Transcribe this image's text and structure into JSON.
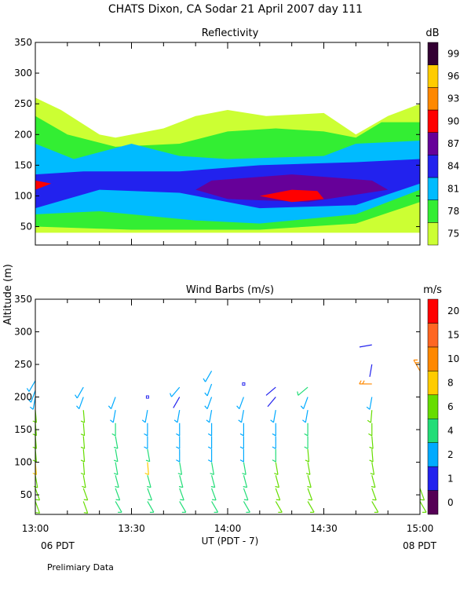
{
  "header": {
    "title": "CHATS Dixon, CA  Sodar  21 April 2007  day 111",
    "y_axis_label": "Altitude (m)",
    "x_axis_label": "UT  (PDT - 7)",
    "left_time_note": "06 PDT",
    "right_time_note": "08 PDT",
    "footer_note": "Prelimiary Data"
  },
  "colors": {
    "reflectivity_scale": [
      "#ccff33",
      "#33ee33",
      "#00bbff",
      "#2222ee",
      "#660099",
      "#ff0000",
      "#ff8800",
      "#ffcc00",
      "#330033"
    ],
    "wind_scale": [
      "#550055",
      "#2222ee",
      "#00aaff",
      "#22dd77",
      "#66dd00",
      "#ffcc00",
      "#ff8800",
      "#ff6622",
      "#ff0000"
    ]
  },
  "chart_data": [
    {
      "type": "heatmap",
      "title": "Reflectivity",
      "unit_label": "dB",
      "ylim": [
        20,
        350
      ],
      "xlim": [
        "13:00",
        "15:00"
      ],
      "y_ticks": [
        "50",
        "100",
        "150",
        "200",
        "250",
        "300",
        "350"
      ],
      "x_ticks": [],
      "colorbar": {
        "min": 72,
        "max": 102,
        "labels": [
          "75",
          "78",
          "81",
          "84",
          "87",
          "90",
          "93",
          "96",
          "99"
        ]
      },
      "grid": false,
      "regions": [
        {
          "level": 75,
          "color_index": 0,
          "points": [
            [
              "13:00",
              260
            ],
            [
              "13:08",
              240
            ],
            [
              "13:20",
              200
            ],
            [
              "13:25",
              195
            ],
            [
              "13:40",
              210
            ],
            [
              "13:50",
              230
            ],
            [
              "14:00",
              240
            ],
            [
              "14:12",
              230
            ],
            [
              "14:30",
              235
            ],
            [
              "14:40",
              200
            ],
            [
              "14:50",
              230
            ],
            [
              "15:00",
              250
            ],
            [
              "15:00",
              40
            ],
            [
              "13:00",
              40
            ]
          ]
        },
        {
          "level": 78,
          "color_index": 1,
          "points": [
            [
              "13:00",
              230
            ],
            [
              "13:10",
              200
            ],
            [
              "13:25",
              180
            ],
            [
              "13:45",
              185
            ],
            [
              "14:00",
              205
            ],
            [
              "14:15",
              210
            ],
            [
              "14:30",
              205
            ],
            [
              "14:40",
              195
            ],
            [
              "14:48",
              220
            ],
            [
              "15:00",
              220
            ],
            [
              "15:00",
              90
            ],
            [
              "14:40",
              55
            ],
            [
              "14:10",
              45
            ],
            [
              "13:30",
              45
            ],
            [
              "13:00",
              50
            ]
          ]
        },
        {
          "level": 81,
          "color_index": 2,
          "points": [
            [
              "13:00",
              185
            ],
            [
              "13:12",
              160
            ],
            [
              "13:30",
              185
            ],
            [
              "13:45",
              165
            ],
            [
              "14:00",
              160
            ],
            [
              "14:30",
              165
            ],
            [
              "14:40",
              185
            ],
            [
              "15:00",
              190
            ],
            [
              "15:00",
              110
            ],
            [
              "14:40",
              70
            ],
            [
              "14:10",
              55
            ],
            [
              "13:50",
              60
            ],
            [
              "13:20",
              75
            ],
            [
              "13:00",
              70
            ]
          ]
        },
        {
          "level": 84,
          "color_index": 3,
          "points": [
            [
              "13:00",
              135
            ],
            [
              "13:15",
              140
            ],
            [
              "13:45",
              140
            ],
            [
              "14:10",
              150
            ],
            [
              "14:40",
              155
            ],
            [
              "15:00",
              160
            ],
            [
              "15:00",
              120
            ],
            [
              "14:40",
              85
            ],
            [
              "14:10",
              80
            ],
            [
              "13:45",
              105
            ],
            [
              "13:20",
              110
            ],
            [
              "13:00",
              80
            ]
          ]
        },
        {
          "level": 87,
          "color_index": 4,
          "points": [
            [
              "13:55",
              125
            ],
            [
              "14:20",
              135
            ],
            [
              "14:45",
              125
            ],
            [
              "14:50",
              110
            ],
            [
              "14:25",
              90
            ],
            [
              "14:00",
              95
            ],
            [
              "13:50",
              110
            ]
          ]
        },
        {
          "level": 90,
          "color_index": 5,
          "points": [
            [
              "14:10",
              100
            ],
            [
              "14:20",
              110
            ],
            [
              "14:28",
              108
            ],
            [
              "14:30",
              95
            ],
            [
              "14:20",
              90
            ]
          ]
        },
        {
          "level": 90,
          "color_index": 5,
          "points": [
            [
              "13:00",
              125
            ],
            [
              "13:05",
              120
            ],
            [
              "13:00",
              110
            ]
          ]
        }
      ]
    },
    {
      "type": "scatter",
      "title": "Wind Barbs (m/s)",
      "unit_label": "m/s",
      "ylim": [
        20,
        350
      ],
      "xlim": [
        "13:00",
        "15:00"
      ],
      "y_ticks": [
        "50",
        "100",
        "150",
        "200",
        "250",
        "300",
        "350"
      ],
      "x_ticks": [
        "13:00",
        "13:30",
        "14:00",
        "14:30",
        "15:00"
      ],
      "colorbar": {
        "min": 0,
        "max": 20,
        "labels": [
          "0",
          "1",
          "2",
          "4",
          "6",
          "8",
          "10",
          "15",
          "20"
        ]
      },
      "grid": false,
      "profiles": [
        {
          "time": "13:00",
          "barbs": [
            [
              40,
              6,
              160
            ],
            [
              60,
              6,
              160
            ],
            [
              80,
              6,
              170
            ],
            [
              100,
              8,
              175
            ],
            [
              120,
              6,
              175
            ],
            [
              140,
              6,
              175
            ],
            [
              160,
              6,
              175
            ],
            [
              180,
              6,
              175
            ],
            [
              200,
              2,
              190
            ],
            [
              210,
              2,
              200
            ],
            [
              225,
              2,
              210
            ]
          ]
        },
        {
          "time": "13:15",
          "barbs": [
            [
              40,
              6,
              160
            ],
            [
              60,
              6,
              160
            ],
            [
              80,
              6,
              170
            ],
            [
              100,
              6,
              175
            ],
            [
              120,
              6,
              175
            ],
            [
              140,
              6,
              175
            ],
            [
              160,
              6,
              175
            ],
            [
              180,
              6,
              175
            ],
            [
              200,
              2,
              200
            ],
            [
              215,
              2,
              210
            ]
          ]
        },
        {
          "time": "13:25",
          "barbs": [
            [
              40,
              4,
              150
            ],
            [
              60,
              4,
              160
            ],
            [
              80,
              4,
              165
            ],
            [
              100,
              4,
              170
            ],
            [
              120,
              4,
              170
            ],
            [
              140,
              4,
              170
            ],
            [
              160,
              4,
              180
            ],
            [
              180,
              2,
              190
            ],
            [
              200,
              2,
              200
            ]
          ]
        },
        {
          "time": "13:35",
          "barbs": [
            [
              40,
              4,
              150
            ],
            [
              60,
              4,
              160
            ],
            [
              80,
              4,
              165
            ],
            [
              100,
              8,
              175
            ],
            [
              120,
              4,
              170
            ],
            [
              140,
              2,
              180
            ],
            [
              160,
              2,
              180
            ],
            [
              180,
              2,
              190
            ],
            [
              200,
              1,
              0
            ]
          ]
        },
        {
          "time": "13:45",
          "barbs": [
            [
              40,
              4,
              150
            ],
            [
              60,
              4,
              160
            ],
            [
              80,
              4,
              165
            ],
            [
              100,
              4,
              170
            ],
            [
              120,
              2,
              180
            ],
            [
              140,
              2,
              180
            ],
            [
              160,
              2,
              180
            ],
            [
              180,
              2,
              190
            ],
            [
              200,
              1,
              210
            ],
            [
              215,
              2,
              220
            ]
          ]
        },
        {
          "time": "13:55",
          "barbs": [
            [
              40,
              4,
              150
            ],
            [
              60,
              4,
              160
            ],
            [
              80,
              4,
              165
            ],
            [
              100,
              4,
              170
            ],
            [
              120,
              2,
              180
            ],
            [
              140,
              2,
              180
            ],
            [
              160,
              2,
              180
            ],
            [
              180,
              2,
              190
            ],
            [
              200,
              2,
              200
            ],
            [
              220,
              2,
              200
            ],
            [
              240,
              2,
              210
            ]
          ]
        },
        {
          "time": "14:05",
          "barbs": [
            [
              40,
              4,
              150
            ],
            [
              60,
              4,
              160
            ],
            [
              80,
              4,
              165
            ],
            [
              100,
              4,
              170
            ],
            [
              120,
              2,
              180
            ],
            [
              140,
              2,
              180
            ],
            [
              160,
              2,
              180
            ],
            [
              180,
              2,
              190
            ],
            [
              200,
              2,
              200
            ],
            [
              220,
              1,
              0
            ]
          ]
        },
        {
          "time": "14:15",
          "barbs": [
            [
              40,
              6,
              150
            ],
            [
              60,
              6,
              160
            ],
            [
              80,
              6,
              165
            ],
            [
              100,
              6,
              170
            ],
            [
              120,
              4,
              180
            ],
            [
              140,
              2,
              180
            ],
            [
              160,
              2,
              180
            ],
            [
              180,
              2,
              190
            ],
            [
              200,
              1,
              220
            ],
            [
              215,
              1,
              230
            ]
          ]
        },
        {
          "time": "14:25",
          "barbs": [
            [
              40,
              6,
              150
            ],
            [
              60,
              6,
              160
            ],
            [
              80,
              6,
              165
            ],
            [
              100,
              6,
              170
            ],
            [
              120,
              6,
              175
            ],
            [
              140,
              4,
              180
            ],
            [
              160,
              4,
              180
            ],
            [
              180,
              2,
              190
            ],
            [
              200,
              2,
              200
            ],
            [
              215,
              4,
              230
            ]
          ]
        },
        {
          "time": "14:45",
          "barbs": [
            [
              40,
              6,
              150
            ],
            [
              60,
              6,
              160
            ],
            [
              80,
              6,
              165
            ],
            [
              100,
              6,
              170
            ],
            [
              120,
              6,
              175
            ],
            [
              140,
              6,
              175
            ],
            [
              160,
              6,
              180
            ],
            [
              180,
              6,
              185
            ],
            [
              200,
              2,
              190
            ],
            [
              220,
              10,
              270
            ],
            [
              250,
              1,
              190
            ],
            [
              280,
              1,
              260
            ]
          ]
        },
        {
          "time": "15:00",
          "barbs": [
            [
              40,
              6,
              150
            ],
            [
              60,
              6,
              160
            ],
            [
              240,
              10,
              330
            ]
          ]
        }
      ]
    }
  ]
}
